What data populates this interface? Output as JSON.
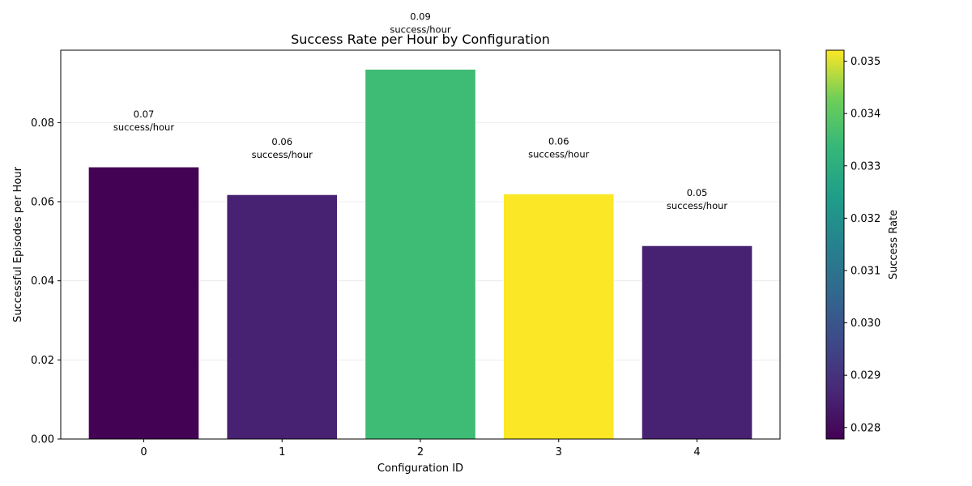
{
  "chart_data": {
    "type": "bar",
    "title": "Success Rate per Hour by Configuration",
    "xlabel": "Configuration ID",
    "ylabel": "Successful Episodes per Hour",
    "categories": [
      "0",
      "1",
      "2",
      "3",
      "4"
    ],
    "values": [
      0.0688,
      0.0618,
      0.0935,
      0.062,
      0.0489
    ],
    "success_rates": [
      0.0278,
      0.02855,
      0.0335,
      0.0352,
      0.02855
    ],
    "bar_labels": [
      [
        "0.07",
        "success/hour"
      ],
      [
        "0.06",
        "success/hour"
      ],
      [
        "0.09",
        "success/hour"
      ],
      [
        "0.06",
        "success/hour"
      ],
      [
        "0.05",
        "success/hour"
      ]
    ],
    "ylim": [
      0,
      0.0983
    ],
    "yticks": [
      "0.00",
      "0.02",
      "0.04",
      "0.06",
      "0.08"
    ],
    "grid": "horizontal",
    "colorbar": {
      "label": "Success Rate",
      "colormap": "viridis",
      "range": [
        0.02778,
        0.03521
      ],
      "ticks": [
        "0.028",
        "0.029",
        "0.030",
        "0.031",
        "0.032",
        "0.033",
        "0.034",
        "0.035"
      ]
    }
  }
}
